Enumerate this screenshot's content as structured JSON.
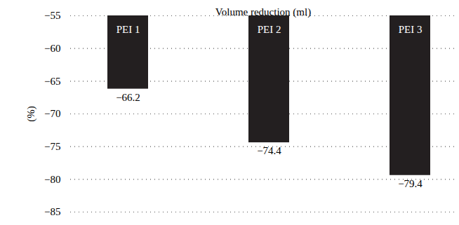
{
  "chart_data": {
    "type": "bar",
    "title": "Volume reduction (ml)",
    "y_label": "(%)",
    "categories": [
      "PEI 1",
      "PEI 2",
      "PEI 3"
    ],
    "values": [
      -66.2,
      -74.4,
      -79.4
    ],
    "color": "#231f20",
    "ylim": [
      -85,
      -55
    ],
    "yticks": [
      -85,
      -80,
      -75,
      -70,
      -65,
      -60,
      -55
    ],
    "grid": true,
    "data_labels": true
  }
}
